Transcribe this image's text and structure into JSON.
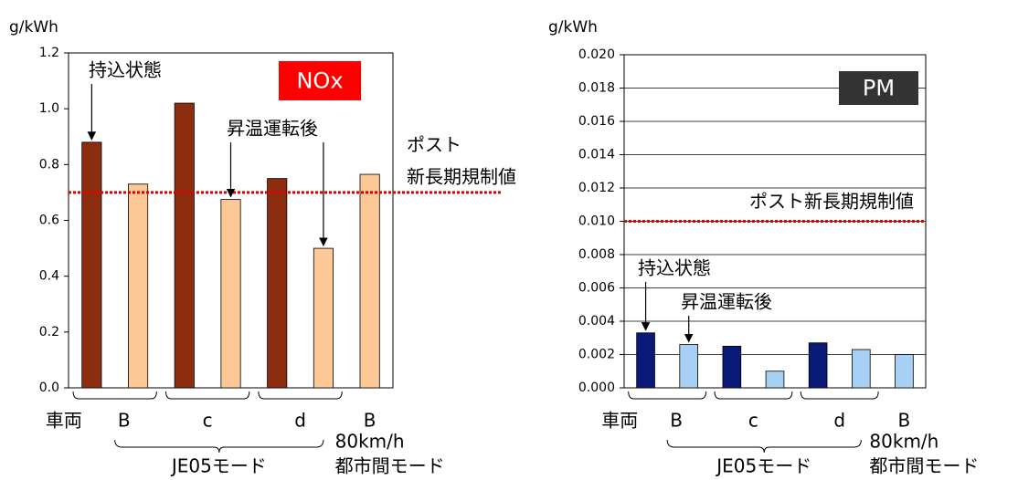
{
  "chart_data": [
    {
      "type": "bar",
      "title": "NOx",
      "title_color": "#ff0000",
      "y_label": "g/kWh",
      "x_prefix": "車両",
      "categories": [
        "B",
        "c",
        "d",
        "B"
      ],
      "last_category_notes": [
        "80km/h",
        "都市間モード"
      ],
      "group_label": "JE05モード",
      "series": [
        {
          "name": "持込状態",
          "color": "#8b2d0e",
          "values": [
            0.88,
            1.02,
            0.75,
            null
          ]
        },
        {
          "name": "昇温運転後",
          "color": "#fcc896",
          "values": [
            0.73,
            0.675,
            0.5,
            0.765
          ]
        }
      ],
      "limit": 0.7,
      "limit_label": [
        "ポスト",
        "新長期規制値"
      ],
      "limit_color": "#e00000",
      "ylim": [
        0,
        1.2
      ],
      "yticks": [
        {
          "value": 0,
          "label": "0.0"
        },
        0.2,
        0.4,
        0.6,
        0.8,
        {
          "value": 1,
          "label": "1.0"
        },
        1.2
      ],
      "grid": false
    },
    {
      "type": "bar",
      "title": "PM",
      "title_color": "#333333",
      "y_label": "g/kWh",
      "x_prefix": "車両",
      "categories": [
        "B",
        "c",
        "d",
        "B"
      ],
      "last_category_notes": [
        "80km/h",
        "都市間モード"
      ],
      "group_label": "JE05モード",
      "series": [
        {
          "name": "持込状態",
          "color": "#0a1a78",
          "values": [
            0.0033,
            0.0025,
            0.0027,
            null
          ]
        },
        {
          "name": "昇温運転後",
          "color": "#a8d0f5",
          "values": [
            0.0026,
            0.001,
            0.0023,
            0.002
          ]
        }
      ],
      "limit": 0.01,
      "limit_label": [
        "ポスト新長期規制値"
      ],
      "limit_color": "#e00000",
      "ylim": [
        0,
        0.02
      ],
      "yticks": [
        {
          "value": 0,
          "label": "0.000"
        },
        {
          "value": 0.002,
          "label": "0.002"
        },
        {
          "value": 0.004,
          "label": "0.004"
        },
        {
          "value": 0.006,
          "label": "0.006"
        },
        {
          "value": 0.008,
          "label": "0.008"
        },
        {
          "value": 0.01,
          "label": "0.010"
        },
        {
          "value": 0.012,
          "label": "0.012"
        },
        {
          "value": 0.014,
          "label": "0.014"
        },
        {
          "value": 0.016,
          "label": "0.016"
        },
        {
          "value": 0.018,
          "label": "0.018"
        },
        {
          "value": 0.02,
          "label": "0.020"
        }
      ],
      "grid": true
    }
  ]
}
